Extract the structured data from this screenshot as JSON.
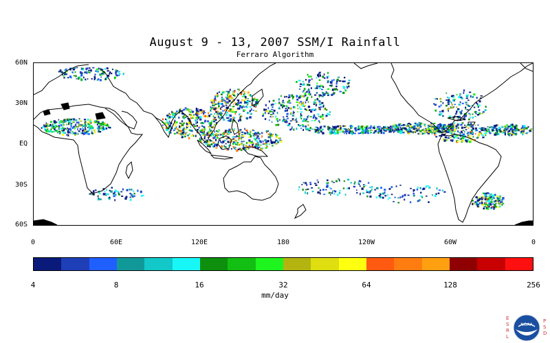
{
  "title": "August 9 - 13, 2007 SSM/I Rainfall",
  "subtitle": "Ferraro Algorithm",
  "map": {
    "lat_labels": [
      "60N",
      "30N",
      "EQ",
      "30S",
      "60S"
    ],
    "lon_labels": [
      "0",
      "60E",
      "120E",
      "180",
      "120W",
      "60W",
      "0"
    ],
    "extent": {
      "lon_min": 0,
      "lon_max": 360,
      "lat_min": -60,
      "lat_max": 60
    }
  },
  "colorbar": {
    "colors": [
      "#0a1a7a",
      "#1f3fb8",
      "#1f5fff",
      "#119999",
      "#12c8c8",
      "#18f7f7",
      "#0e8f0e",
      "#12bf12",
      "#1ef51e",
      "#b4b410",
      "#dede10",
      "#ffff10",
      "#ff5a10",
      "#ff7d10",
      "#ffa010",
      "#8f0000",
      "#c80000",
      "#ff1010"
    ],
    "ticks": [
      "4",
      "8",
      "16",
      "32",
      "64",
      "128",
      "256"
    ],
    "units": "mm/day"
  },
  "logo": {
    "left_letters": [
      "E",
      "S",
      "R",
      "L"
    ],
    "right_letters": [
      "P",
      "S",
      "D"
    ],
    "badge_text": "NOAA"
  }
}
